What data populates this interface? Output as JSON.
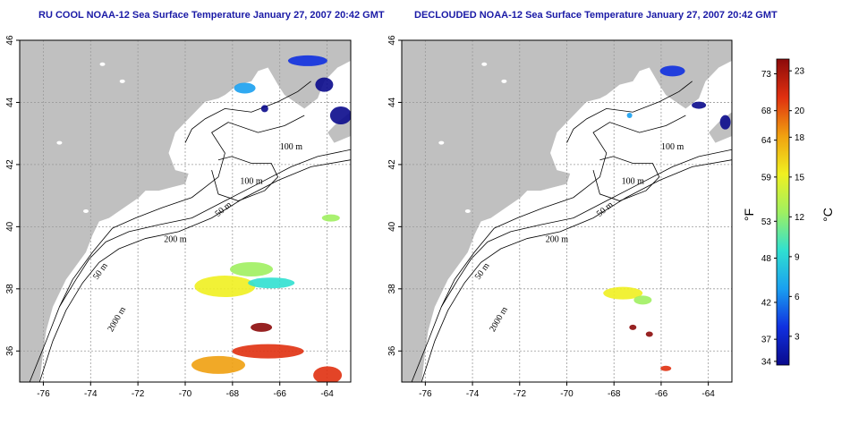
{
  "maps": [
    {
      "title": "RU COOL NOAA-12 Sea Surface Temperature January 27, 2007 20:42 GMT",
      "contour_labels": [
        "100 m",
        "100 m",
        "50 m",
        "200 m",
        "50 m",
        "2000 m"
      ]
    },
    {
      "title": "DECLOUDED NOAA-12 Sea Surface Temperature January 27, 2007 20:42 GMT",
      "contour_labels": [
        "100 m",
        "100 m",
        "50 m",
        "200 m",
        "50 m",
        "2000 m"
      ]
    }
  ],
  "x_ticks": [
    "-76",
    "-74",
    "-72",
    "-70",
    "-68",
    "-66",
    "-64"
  ],
  "y_ticks": [
    "36",
    "38",
    "40",
    "42",
    "44",
    "46"
  ],
  "colorbar": {
    "f_ticks": [
      "73",
      "68",
      "64",
      "59",
      "53",
      "48",
      "42",
      "37",
      "34"
    ],
    "c_ticks": [
      "23",
      "20",
      "18",
      "15",
      "12",
      "9",
      "6",
      "3"
    ],
    "f_unit": "°F",
    "c_unit": "°C",
    "colors": [
      "#0a0a8c",
      "#1030e0",
      "#1aa0f0",
      "#30e0d0",
      "#a0f060",
      "#f0f020",
      "#f0a010",
      "#e03010",
      "#8c0a0a"
    ]
  },
  "colors": {
    "land": "#c0c0c0",
    "ocean": "#ffffff",
    "title": "#1a1aa6",
    "grid": "#9a9a9a"
  }
}
